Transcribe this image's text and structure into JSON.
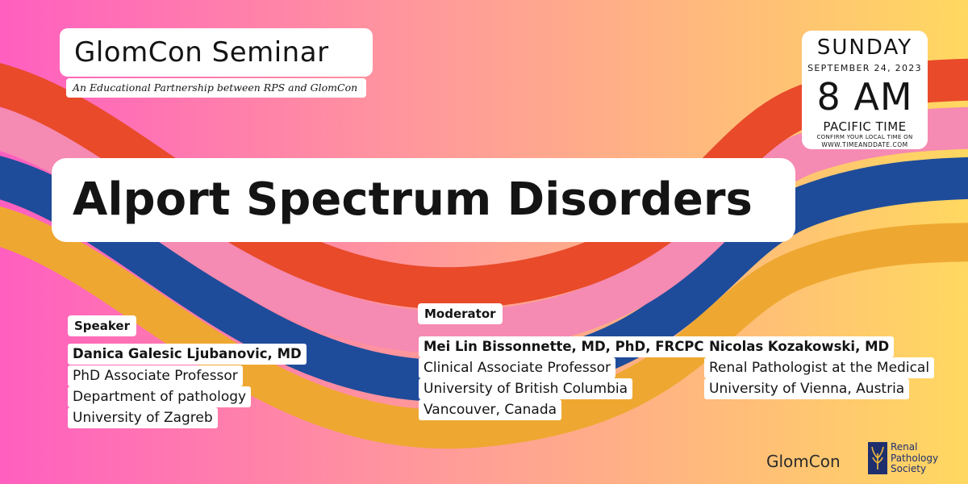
{
  "colors": {
    "background_left": "#ff5fc0",
    "background_right": "#ffd860",
    "band_red": "#e84a2a",
    "band_pink": "#f58ab2",
    "band_blue": "#1f4c9a",
    "band_gold": "#eea832"
  },
  "header": {
    "seminar_title": "GlomCon Seminar",
    "partnership": "An Educational Partnership between RPS and GlomCon"
  },
  "event": {
    "day": "SUNDAY",
    "date": "SEPTEMBER 24, 2023",
    "time": "8 AM",
    "timezone": "PACIFIC TIME",
    "note": "CONFIRM YOUR LOCAL TIME ON",
    "site": "WWW.TIMEANDDATE.COM"
  },
  "main": {
    "title": "Alport Spectrum Disorders"
  },
  "speaker": {
    "heading": "Speaker",
    "name": "Danica Galesic Ljubanovic, MD",
    "lines": [
      "PhD Associate Professor",
      "Department of pathology",
      "University of Zagreb"
    ]
  },
  "moderator": {
    "heading": "Moderator",
    "name": "Mei Lin Bissonnette, MD, PhD, FRCPC",
    "lines": [
      "Clinical Associate Professor",
      "University of British Columbia",
      "Vancouver, Canada"
    ]
  },
  "comoderator": {
    "name": "Nicolas Kozakowski, MD",
    "lines": [
      "Renal Pathologist at the Medical",
      "University of Vienna, Austria"
    ]
  },
  "footer": {
    "glomcon_logo": "GlomCon",
    "rps_logo_lines": [
      "Renal",
      "Pathology",
      "Society"
    ],
    "rps_icon": "kidney-tree-icon"
  }
}
